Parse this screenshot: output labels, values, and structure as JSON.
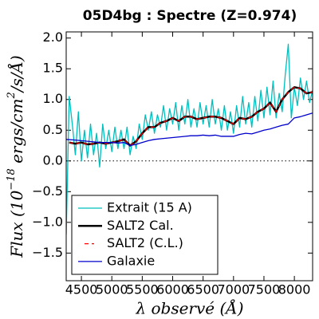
{
  "chart_data": {
    "type": "line",
    "title": "05D4bg : Spectre (Z=0.974)",
    "xlabel": "λ observé (Å)",
    "ylabel_parts": [
      "Flux (10",
      "−18",
      " ergs/cm",
      "2",
      "/s/Å)"
    ],
    "xlim": [
      4250,
      8300
    ],
    "ylim": [
      -1.95,
      2.1
    ],
    "xticks": [
      4500,
      5000,
      5500,
      6000,
      6500,
      7000,
      7500,
      8000
    ],
    "yticks": [
      {
        "value": -1.5,
        "label": "−1.5"
      },
      {
        "value": -1,
        "label": "−1.0"
      },
      {
        "value": -0.5,
        "label": "−0.5"
      },
      {
        "value": 0,
        "label": "0.0"
      },
      {
        "value": 0.5,
        "label": "0.5"
      },
      {
        "value": 1,
        "label": "1.0"
      },
      {
        "value": 1.5,
        "label": "1.5"
      },
      {
        "value": 2,
        "label": "2.0"
      }
    ],
    "hline": 0,
    "legend": "lower left",
    "series": [
      {
        "name": "Extrait (15 A)",
        "color": "#00bfbf",
        "width": 1.3,
        "dash": false,
        "x": [
          4250,
          4300,
          4350,
          4400,
          4450,
          4500,
          4550,
          4600,
          4650,
          4700,
          4750,
          4800,
          4850,
          4900,
          4950,
          5000,
          5050,
          5100,
          5150,
          5200,
          5250,
          5300,
          5350,
          5400,
          5450,
          5500,
          5550,
          5600,
          5650,
          5700,
          5750,
          5800,
          5850,
          5900,
          5950,
          6000,
          6050,
          6100,
          6150,
          6200,
          6250,
          6300,
          6350,
          6400,
          6450,
          6500,
          6550,
          6600,
          6650,
          6700,
          6750,
          6800,
          6850,
          6900,
          6950,
          7000,
          7050,
          7100,
          7150,
          7200,
          7250,
          7300,
          7350,
          7400,
          7450,
          7500,
          7550,
          7600,
          7650,
          7700,
          7750,
          7800,
          7850,
          7900,
          7950,
          8000,
          8050,
          8100,
          8150,
          8200,
          8250,
          8300
        ],
        "values": [
          -1.2,
          1.05,
          0.6,
          0.1,
          0.8,
          0.0,
          0.5,
          0.05,
          0.6,
          0.1,
          0.45,
          -0.1,
          0.6,
          0.2,
          0.5,
          0.15,
          0.55,
          0.2,
          0.5,
          0.2,
          0.55,
          0.1,
          0.4,
          0.2,
          0.6,
          0.35,
          0.75,
          0.5,
          0.8,
          0.45,
          0.75,
          0.55,
          0.9,
          0.5,
          0.85,
          0.6,
          0.95,
          0.5,
          0.9,
          0.6,
          1.0,
          0.55,
          0.85,
          0.55,
          0.95,
          0.6,
          0.9,
          0.55,
          1.0,
          0.6,
          0.85,
          0.5,
          0.9,
          0.5,
          0.8,
          0.45,
          0.9,
          0.55,
          1.05,
          0.6,
          0.95,
          0.55,
          1.05,
          0.65,
          1.15,
          0.7,
          1.2,
          0.75,
          1.3,
          0.7,
          1.1,
          0.8,
          1.4,
          1.9,
          0.7,
          1.2,
          0.9,
          1.35,
          1.0,
          1.3,
          0.95,
          1.15
        ]
      },
      {
        "name": "SALT2 Cal.",
        "color": "#000000",
        "width": 2.5,
        "dash": false,
        "x": [
          4300,
          4400,
          4500,
          4600,
          4700,
          4800,
          4900,
          5000,
          5100,
          5200,
          5300,
          5400,
          5500,
          5600,
          5700,
          5800,
          5900,
          6000,
          6100,
          6200,
          6300,
          6400,
          6500,
          6600,
          6700,
          6800,
          6900,
          7000,
          7100,
          7200,
          7300,
          7400,
          7500,
          7600,
          7700,
          7800,
          7900,
          8000,
          8100,
          8200,
          8300
        ],
        "values": [
          0.3,
          0.28,
          0.3,
          0.27,
          0.28,
          0.3,
          0.28,
          0.3,
          0.32,
          0.35,
          0.25,
          0.32,
          0.45,
          0.55,
          0.55,
          0.62,
          0.65,
          0.7,
          0.65,
          0.72,
          0.72,
          0.68,
          0.7,
          0.72,
          0.72,
          0.7,
          0.65,
          0.6,
          0.7,
          0.68,
          0.72,
          0.8,
          0.85,
          0.95,
          0.8,
          1.0,
          1.12,
          1.2,
          1.18,
          1.1,
          1.12
        ]
      },
      {
        "name": "SALT2 (C.L.)",
        "color": "#ff0000",
        "width": 1.3,
        "dash": true,
        "x": [
          4300,
          4400,
          4500,
          4600,
          4700,
          4800,
          4900,
          5000,
          5100,
          5200,
          5300,
          5400,
          5500,
          5600,
          5700,
          5800,
          5900,
          6000,
          6100,
          6200,
          6300,
          6400,
          6500,
          6600,
          6700,
          6800,
          6900,
          7000,
          7100,
          7200,
          7300,
          7400,
          7500,
          7600,
          7700,
          7800,
          7900,
          8000,
          8100,
          8200,
          8300
        ],
        "values": [
          0.3,
          0.28,
          0.3,
          0.27,
          0.28,
          0.3,
          0.28,
          0.3,
          0.32,
          0.35,
          0.25,
          0.32,
          0.45,
          0.55,
          0.55,
          0.62,
          0.65,
          0.7,
          0.65,
          0.72,
          0.72,
          0.68,
          0.7,
          0.72,
          0.72,
          0.7,
          0.65,
          0.6,
          0.7,
          0.68,
          0.72,
          0.8,
          0.85,
          0.95,
          0.8,
          1.0,
          1.12,
          1.2,
          1.18,
          1.1,
          1.12
        ]
      },
      {
        "name": "Galaxie",
        "color": "#0000cc",
        "width": 1.3,
        "dash": false,
        "x": [
          4250,
          4400,
          4500,
          4600,
          4700,
          4800,
          4900,
          5000,
          5100,
          5200,
          5300,
          5400,
          5500,
          5600,
          5700,
          5800,
          5900,
          6000,
          6100,
          6200,
          6300,
          6400,
          6500,
          6600,
          6700,
          6800,
          6900,
          7000,
          7100,
          7200,
          7300,
          7400,
          7500,
          7600,
          7700,
          7800,
          7900,
          8000,
          8100,
          8200,
          8300
        ],
        "values": [
          0.35,
          0.34,
          0.33,
          0.32,
          0.31,
          0.3,
          0.3,
          0.3,
          0.29,
          0.3,
          0.25,
          0.27,
          0.3,
          0.33,
          0.35,
          0.36,
          0.37,
          0.38,
          0.39,
          0.4,
          0.41,
          0.41,
          0.42,
          0.41,
          0.42,
          0.4,
          0.4,
          0.4,
          0.43,
          0.45,
          0.44,
          0.47,
          0.5,
          0.52,
          0.55,
          0.58,
          0.6,
          0.7,
          0.72,
          0.75,
          0.78
        ]
      }
    ]
  }
}
